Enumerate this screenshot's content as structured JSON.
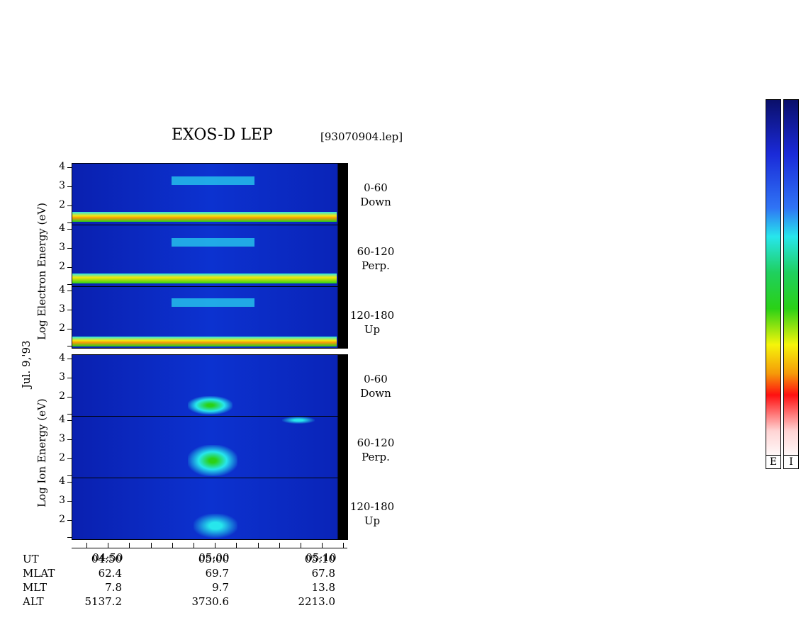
{
  "chart_data": {
    "type": "heatmap",
    "title": "EXOS-D LEP",
    "file": "[93070904.lep]",
    "date_label": "Jul. 9,'93",
    "electron_ylabel": "Log  Electron  Energy (eV)",
    "ion_ylabel": "Log  Ion  Energy (eV)",
    "y_ticks": [
      "4",
      "3",
      "2"
    ],
    "electron_panels": [
      {
        "angle": "0-60",
        "direction": "Down"
      },
      {
        "angle": "60-120",
        "direction": "Perp."
      },
      {
        "angle": "120-180",
        "direction": "Up"
      }
    ],
    "ion_panels": [
      {
        "angle": "0-60",
        "direction": "Down"
      },
      {
        "angle": "60-120",
        "direction": "Perp."
      },
      {
        "angle": "120-180",
        "direction": "Up"
      }
    ],
    "x_ticks": [
      "04:50",
      "05:00",
      "05:10"
    ],
    "table": {
      "rows": [
        {
          "label": "UT",
          "values": [
            "04:50",
            "05:00",
            "05:10"
          ]
        },
        {
          "label": "MLAT",
          "values": [
            "62.4",
            "69.7",
            "67.8"
          ]
        },
        {
          "label": "MLT",
          "values": [
            "7.8",
            "9.7",
            "13.8"
          ]
        },
        {
          "label": "ALT",
          "values": [
            "5137.2",
            "3730.6",
            "2213.0"
          ]
        }
      ]
    },
    "colorbar_labels": [
      "E",
      "I"
    ],
    "colors": {
      "background_blue": "#0c32d0",
      "low_energy_band": "#f5e60a",
      "mid_band": "#27e6ec"
    }
  }
}
